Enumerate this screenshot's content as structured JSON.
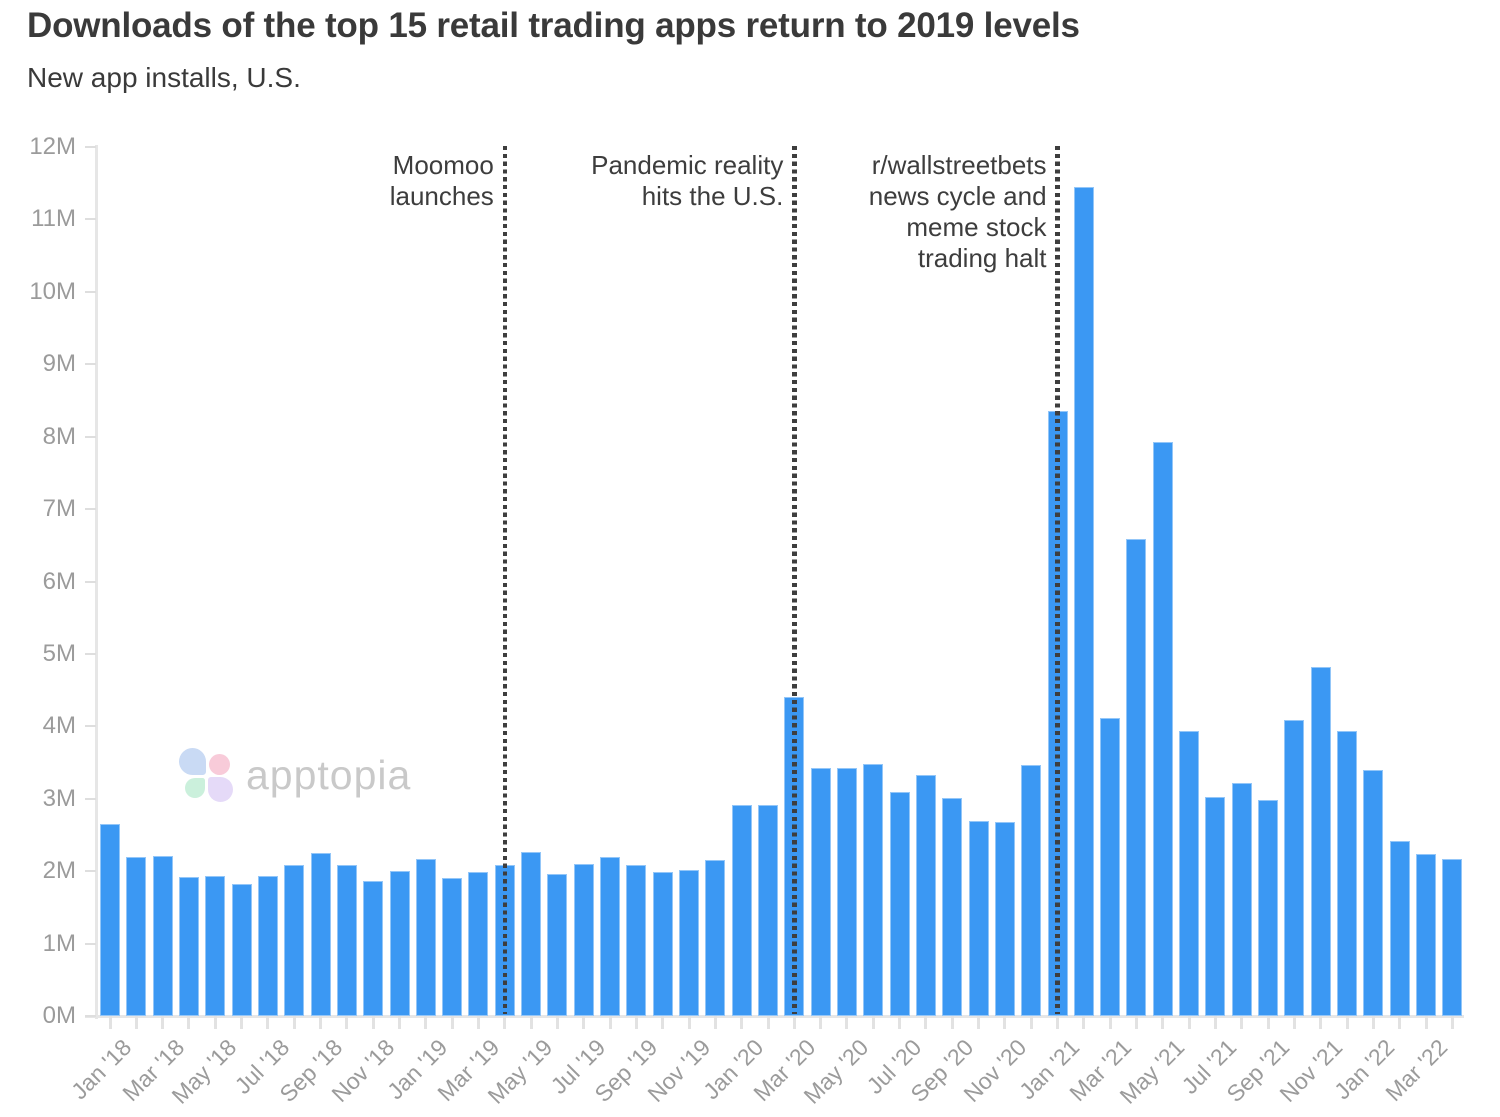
{
  "title": "Downloads of the top 15 retail trading apps return to 2019 levels",
  "subtitle": "New app installs, U.S.",
  "watermark": {
    "text": "apptopia",
    "petal_colors": [
      "#c9daf4",
      "#f8cbd9",
      "#cbf0dc",
      "#e5daf8"
    ]
  },
  "colors": {
    "bar": "#3b98f3",
    "axis": "#e6e6e6",
    "tick_label": "#9b9b9b",
    "title_text": "#3a3a3a",
    "annotation": "#3d3d3d",
    "watermark_text": "#c9c9c9"
  },
  "chart_data": {
    "type": "bar",
    "title": "Downloads of the top 15 retail trading apps return to 2019 levels",
    "subtitle": "New app installs, U.S.",
    "unit": "millions of installs",
    "grid": false,
    "legend": null,
    "ylim": [
      0,
      12
    ],
    "y_ticks": [
      "0M",
      "1M",
      "2M",
      "3M",
      "4M",
      "5M",
      "6M",
      "7M",
      "8M",
      "9M",
      "10M",
      "11M",
      "12M"
    ],
    "x_label_every": 2,
    "x": [
      "Jan '18",
      "Feb '18",
      "Mar '18",
      "Apr '18",
      "May '18",
      "Jun '18",
      "Jul '18",
      "Aug '18",
      "Sep '18",
      "Oct '18",
      "Nov '18",
      "Dec '18",
      "Jan '19",
      "Feb '19",
      "Mar '19",
      "Apr '19",
      "May '19",
      "Jun '19",
      "Jul '19",
      "Aug '19",
      "Sep '19",
      "Oct '19",
      "Nov '19",
      "Dec '19",
      "Jan '20",
      "Feb '20",
      "Mar '20",
      "Apr '20",
      "May '20",
      "Jun '20",
      "Jul '20",
      "Aug '20",
      "Sep '20",
      "Oct '20",
      "Nov '20",
      "Dec '20",
      "Jan '21",
      "Feb '21",
      "Mar '21",
      "Apr '21",
      "May '21",
      "Jun '21",
      "Jul '21",
      "Aug '21",
      "Sep '21",
      "Oct '21",
      "Nov '21",
      "Dec '21",
      "Jan '22",
      "Feb '22",
      "Mar '22",
      "Apr '22"
    ],
    "values": [
      2.65,
      2.2,
      2.21,
      1.92,
      1.93,
      1.82,
      1.94,
      2.08,
      2.25,
      2.09,
      1.87,
      2.0,
      2.17,
      1.91,
      1.99,
      2.09,
      2.26,
      1.96,
      2.1,
      2.2,
      2.08,
      1.99,
      2.02,
      2.15,
      2.91,
      2.91,
      4.4,
      3.43,
      3.42,
      3.48,
      3.1,
      3.33,
      3.01,
      2.69,
      2.68,
      3.46,
      8.35,
      11.45,
      4.11,
      6.59,
      7.93,
      3.93,
      3.02,
      3.22,
      2.98,
      4.09,
      4.82,
      3.94,
      3.4,
      2.42,
      2.24,
      2.17
    ],
    "annotations": [
      {
        "lines": [
          "Moomoo",
          "launches"
        ],
        "month": "Apr '19",
        "month_index": 15
      },
      {
        "lines": [
          "Pandemic reality",
          "hits the U.S."
        ],
        "month": "Mar '20",
        "month_index": 26
      },
      {
        "lines": [
          "r/wallstreetbets",
          "news cycle and",
          "meme stock",
          "trading halt"
        ],
        "month": "Jan '21",
        "month_index": 36
      }
    ]
  }
}
